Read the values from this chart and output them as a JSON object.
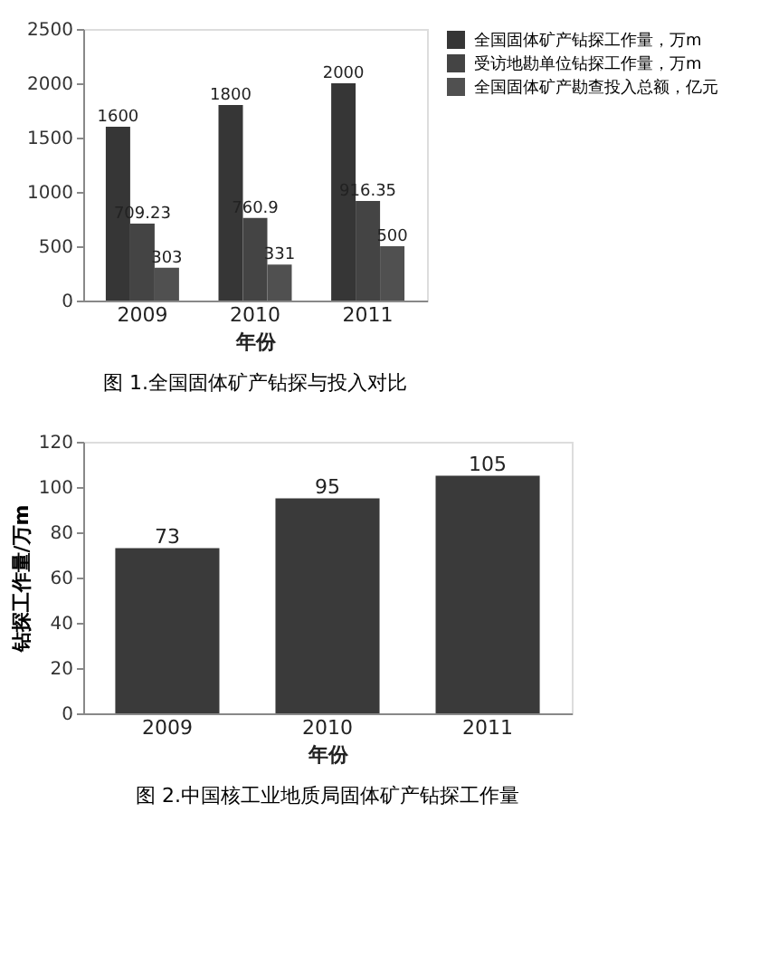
{
  "chart_data": [
    {
      "type": "bar",
      "categories": [
        "2009",
        "2010",
        "2011"
      ],
      "xlabel": "年份",
      "series": [
        {
          "name": "全国固体矿产钻探工作量，万m",
          "color": "#363636",
          "values": [
            1600,
            1800,
            2000
          ]
        },
        {
          "name": "受访地勘单位钻探工作量，万m",
          "color": "#444444",
          "values": [
            709.23,
            760.9,
            916.35
          ]
        },
        {
          "name": "全国固体矿产勘查投入总额，亿元",
          "color": "#505050",
          "values": [
            303,
            331,
            500
          ]
        }
      ],
      "ylim": [
        0,
        2500
      ],
      "yticks": [
        0,
        500,
        1000,
        1500,
        2000,
        2500
      ],
      "grid": false,
      "legend": "top right",
      "data_labels": true,
      "annotations": [
        "图 1.全国固体矿产钻探与投入对比"
      ]
    },
    {
      "type": "bar",
      "categories": [
        "2009",
        "2010",
        "2011"
      ],
      "xlabel": "年份",
      "ylabel": "钻探工作量/万m",
      "series": [
        {
          "color": "#3a3a3a",
          "values": [
            73,
            95,
            105
          ]
        }
      ],
      "ylim": [
        0,
        120
      ],
      "yticks": [
        0,
        20,
        40,
        60,
        80,
        100,
        120
      ],
      "grid": false,
      "legend": false,
      "data_labels": true,
      "annotations": [
        "图 2.中国核工业地质局固体矿产钻探工作量"
      ]
    }
  ]
}
